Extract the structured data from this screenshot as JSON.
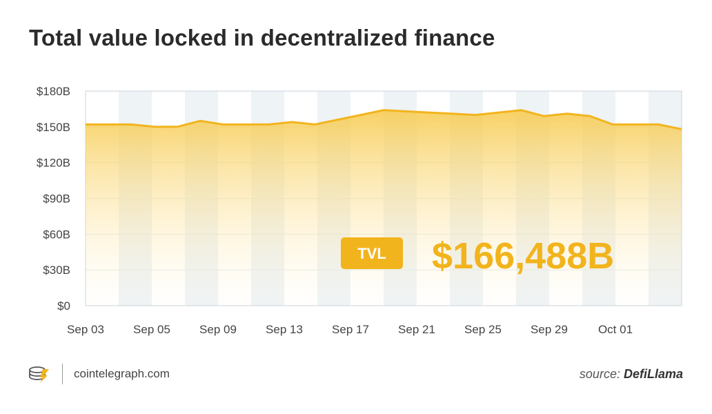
{
  "header": {
    "title": "Total value locked in decentralized finance"
  },
  "footer": {
    "brand_text": "cointelegraph.com",
    "source_prefix": "source:",
    "source_name": "DefiLlama"
  },
  "colors": {
    "line": "#F2B41D",
    "fill_top": "#F7C948",
    "band": "#EEF3F6",
    "badge": "#F2B41D",
    "big_value": "#F2B41D"
  },
  "chart_data": {
    "type": "area",
    "title": "Total value locked in decentralized finance",
    "xlabel": "",
    "ylabel": "",
    "ylim": [
      0,
      180
    ],
    "y_ticks": [
      0,
      30,
      60,
      90,
      120,
      150,
      180
    ],
    "y_tick_labels": [
      "$0",
      "$30B",
      "$60B",
      "$90B",
      "$120B",
      "$150B",
      "$180B"
    ],
    "x_tick_labels": [
      "Sep 03",
      "Sep 05",
      "Sep 09",
      "Sep 13",
      "Sep 17",
      "Sep 21",
      "Sep 25",
      "Sep 29",
      "Oct 01"
    ],
    "grid": true,
    "series": [
      {
        "values": [
          152,
          152,
          152,
          150,
          150,
          155,
          152,
          152,
          152,
          154,
          152,
          156,
          160,
          164,
          163,
          162,
          161,
          160,
          162,
          164,
          159,
          161,
          159,
          152,
          152,
          152,
          148
        ]
      }
    ],
    "annotation": {
      "badge": "TVL",
      "value": "$166,488B"
    }
  }
}
